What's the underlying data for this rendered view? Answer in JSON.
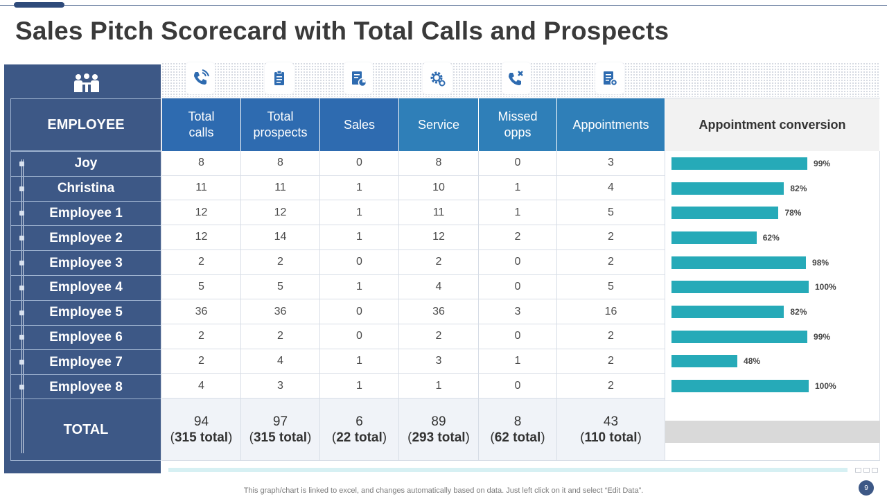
{
  "title": "Sales Pitch Scorecard with Total Calls and Prospects",
  "colors": {
    "navy": "#3d5886",
    "header_dark_blue": "#2e6bb0",
    "header_mid_blue": "#2f7fb8",
    "bar_teal": "#26aab8"
  },
  "icons": [
    "team-icon",
    "phone-call-icon",
    "clipboard-icon",
    "document-chart-icon",
    "gear-icon",
    "missed-call-icon",
    "document-gear-icon"
  ],
  "table": {
    "employee_header": "EMPLOYEE",
    "columns": [
      {
        "line1": "Total",
        "line2": "calls"
      },
      {
        "line1": "Total",
        "line2": "prospects"
      },
      {
        "line1": "Sales",
        "line2": ""
      },
      {
        "line1": "Service",
        "line2": ""
      },
      {
        "line1": "Missed",
        "line2": "opps"
      },
      {
        "line1": "Appointments",
        "line2": ""
      }
    ],
    "conversion_header": "Appointment conversion",
    "rows": [
      {
        "name": "Joy",
        "values": [
          "8",
          "8",
          "0",
          "8",
          "0",
          "3"
        ],
        "conversion": "99%",
        "conversion_value": 99
      },
      {
        "name": "Christina",
        "values": [
          "11",
          "11",
          "1",
          "10",
          "1",
          "4"
        ],
        "conversion": "82%",
        "conversion_value": 82
      },
      {
        "name": "Employee 1",
        "values": [
          "12",
          "12",
          "1",
          "11",
          "1",
          "5"
        ],
        "conversion": "78%",
        "conversion_value": 78
      },
      {
        "name": "Employee 2",
        "values": [
          "12",
          "14",
          "1",
          "12",
          "2",
          "2"
        ],
        "conversion": "62%",
        "conversion_value": 62
      },
      {
        "name": "Employee 3",
        "values": [
          "2",
          "2",
          "0",
          "2",
          "0",
          "2"
        ],
        "conversion": "98%",
        "conversion_value": 98
      },
      {
        "name": "Employee 4",
        "values": [
          "5",
          "5",
          "1",
          "4",
          "0",
          "5"
        ],
        "conversion": "100%",
        "conversion_value": 100
      },
      {
        "name": "Employee 5",
        "values": [
          "36",
          "36",
          "0",
          "36",
          "3",
          "16"
        ],
        "conversion": "82%",
        "conversion_value": 82
      },
      {
        "name": "Employee 6",
        "values": [
          "2",
          "2",
          "0",
          "2",
          "0",
          "2"
        ],
        "conversion": "99%",
        "conversion_value": 99
      },
      {
        "name": "Employee 7",
        "values": [
          "2",
          "4",
          "1",
          "3",
          "1",
          "2"
        ],
        "conversion": "48%",
        "conversion_value": 48
      },
      {
        "name": "Employee 8",
        "values": [
          "4",
          "3",
          "1",
          "1",
          "0",
          "2"
        ],
        "conversion": "100%",
        "conversion_value": 100
      }
    ],
    "total_label": "TOTAL",
    "totals": [
      {
        "value": "94",
        "sub_open": "(",
        "sub_bold": "315 total",
        "sub_close": ")"
      },
      {
        "value": "97",
        "sub_open": "(",
        "sub_bold": "315 total",
        "sub_close": ")"
      },
      {
        "value": "6",
        "sub_open": "(",
        "sub_bold": "22 total",
        "sub_close": ")"
      },
      {
        "value": "89",
        "sub_open": "(",
        "sub_bold": "293 total",
        "sub_close": ")"
      },
      {
        "value": "8",
        "sub_open": "(",
        "sub_bold": "62 total",
        "sub_close": ")"
      },
      {
        "value": "43",
        "sub_open": "(",
        "sub_bold": "110 total",
        "sub_close": ")"
      }
    ]
  },
  "footnote": "This graph/chart is linked to excel,  and changes automatically based on data. Just left click on it and select “Edit Data”.",
  "page_number": "9"
}
